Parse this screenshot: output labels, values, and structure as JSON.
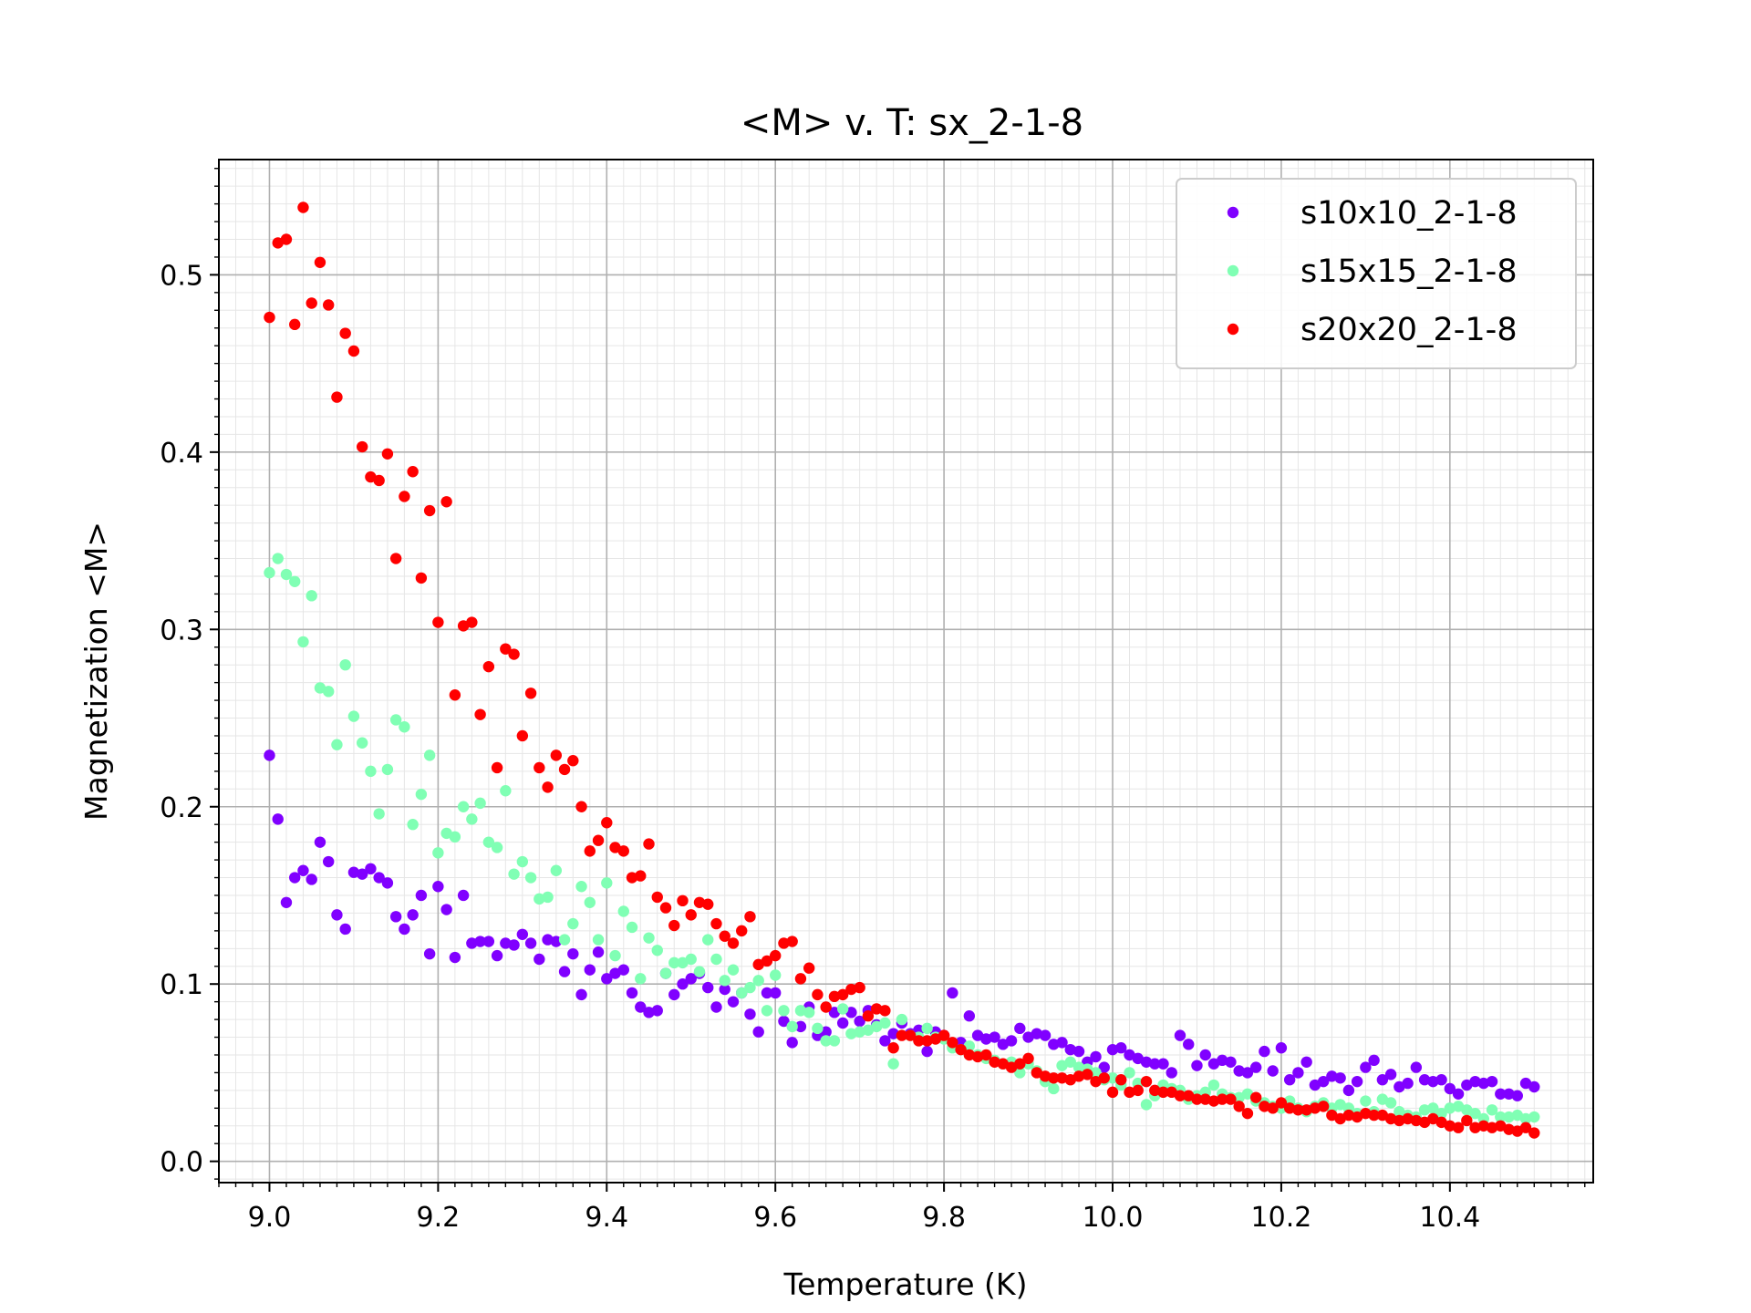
{
  "chart_data": {
    "type": "scatter",
    "title": "<M> v. T: sx_2-1-8",
    "xlabel": "Temperature (K)",
    "ylabel": "Magnetization <M>",
    "xlim": [
      8.94,
      10.57
    ],
    "ylim": [
      -0.012,
      0.565
    ],
    "xticks": [
      "9.0",
      "9.2",
      "9.4",
      "9.6",
      "9.8",
      "10.0",
      "10.2",
      "10.4"
    ],
    "yticks": [
      "0.0",
      "0.1",
      "0.2",
      "0.3",
      "0.4",
      "0.5"
    ],
    "grid": "major and minor",
    "legend_position": "top-right",
    "series": [
      {
        "name": "s10x10_2-1-8",
        "color": "#8000ff",
        "x": [
          9.0,
          9.01,
          9.02,
          9.03,
          9.04,
          9.05,
          9.06,
          9.07,
          9.08,
          9.09,
          9.1,
          9.11,
          9.12,
          9.13,
          9.14,
          9.15,
          9.16,
          9.17,
          9.18,
          9.19,
          9.2,
          9.21,
          9.22,
          9.23,
          9.24,
          9.25,
          9.26,
          9.27,
          9.28,
          9.29,
          9.3,
          9.31,
          9.32,
          9.33,
          9.34,
          9.35,
          9.36,
          9.37,
          9.38,
          9.39,
          9.4,
          9.41,
          9.42,
          9.43,
          9.44,
          9.45,
          9.46,
          9.47,
          9.48,
          9.49,
          9.5,
          9.51,
          9.52,
          9.53,
          9.54,
          9.55,
          9.56,
          9.57,
          9.58,
          9.59,
          9.6,
          9.61,
          9.62,
          9.63,
          9.64,
          9.65,
          9.66,
          9.67,
          9.68,
          9.69,
          9.7,
          9.71,
          9.72,
          9.73,
          9.74,
          9.75,
          9.76,
          9.77,
          9.78,
          9.79,
          9.8,
          9.81,
          9.82,
          9.83,
          9.84,
          9.85,
          9.86,
          9.87,
          9.88,
          9.89,
          9.9,
          9.91,
          9.92,
          9.93,
          9.94,
          9.95,
          9.96,
          9.97,
          9.98,
          9.99,
          10.0,
          10.01,
          10.02,
          10.03,
          10.04,
          10.05,
          10.06,
          10.07,
          10.08,
          10.09,
          10.1,
          10.11,
          10.12,
          10.13,
          10.14,
          10.15,
          10.16,
          10.17,
          10.18,
          10.19,
          10.2,
          10.21,
          10.22,
          10.23,
          10.24,
          10.25,
          10.26,
          10.27,
          10.28,
          10.29,
          10.3,
          10.31,
          10.32,
          10.33,
          10.34,
          10.35,
          10.36,
          10.37,
          10.38,
          10.39,
          10.4,
          10.41,
          10.42,
          10.43,
          10.44,
          10.45,
          10.46,
          10.47,
          10.48,
          10.49,
          10.5
        ],
        "y": [
          0.229,
          0.193,
          0.146,
          0.16,
          0.164,
          0.159,
          0.18,
          0.169,
          0.139,
          0.131,
          0.163,
          0.162,
          0.165,
          0.16,
          0.157,
          0.138,
          0.131,
          0.139,
          0.15,
          0.117,
          0.155,
          0.142,
          0.115,
          0.15,
          0.123,
          0.124,
          0.124,
          0.116,
          0.123,
          0.122,
          0.128,
          0.123,
          0.114,
          0.125,
          0.124,
          0.107,
          0.117,
          0.094,
          0.108,
          0.118,
          0.103,
          0.106,
          0.108,
          0.095,
          0.087,
          0.084,
          0.085,
          0.106,
          0.094,
          0.1,
          0.103,
          0.106,
          0.098,
          0.087,
          0.097,
          0.09,
          0.095,
          0.083,
          0.073,
          0.095,
          0.095,
          0.079,
          0.067,
          0.076,
          0.087,
          0.071,
          0.073,
          0.084,
          0.078,
          0.084,
          0.079,
          0.085,
          0.077,
          0.068,
          0.072,
          0.078,
          0.072,
          0.074,
          0.062,
          0.073,
          0.071,
          0.095,
          0.067,
          0.082,
          0.071,
          0.069,
          0.07,
          0.066,
          0.068,
          0.075,
          0.07,
          0.072,
          0.071,
          0.066,
          0.067,
          0.063,
          0.062,
          0.056,
          0.059,
          0.053,
          0.063,
          0.064,
          0.06,
          0.058,
          0.056,
          0.055,
          0.055,
          0.05,
          0.071,
          0.066,
          0.054,
          0.06,
          0.055,
          0.057,
          0.056,
          0.051,
          0.05,
          0.053,
          0.062,
          0.051,
          0.064,
          0.046,
          0.05,
          0.056,
          0.043,
          0.045,
          0.048,
          0.047,
          0.04,
          0.045,
          0.053,
          0.057,
          0.046,
          0.049,
          0.042,
          0.044,
          0.053,
          0.046,
          0.045,
          0.046,
          0.041,
          0.038,
          0.043,
          0.045,
          0.044,
          0.045,
          0.038,
          0.038,
          0.037,
          0.044,
          0.042
        ]
      },
      {
        "name": "s15x15_2-1-8",
        "color": "#80ffb4",
        "x": [
          9.0,
          9.01,
          9.02,
          9.03,
          9.04,
          9.05,
          9.06,
          9.07,
          9.08,
          9.09,
          9.1,
          9.11,
          9.12,
          9.13,
          9.14,
          9.15,
          9.16,
          9.17,
          9.18,
          9.19,
          9.2,
          9.21,
          9.22,
          9.23,
          9.24,
          9.25,
          9.26,
          9.27,
          9.28,
          9.29,
          9.3,
          9.31,
          9.32,
          9.33,
          9.34,
          9.35,
          9.36,
          9.37,
          9.38,
          9.39,
          9.4,
          9.41,
          9.42,
          9.43,
          9.44,
          9.45,
          9.46,
          9.47,
          9.48,
          9.49,
          9.5,
          9.51,
          9.52,
          9.53,
          9.54,
          9.55,
          9.56,
          9.57,
          9.58,
          9.59,
          9.6,
          9.61,
          9.62,
          9.63,
          9.64,
          9.65,
          9.66,
          9.67,
          9.68,
          9.69,
          9.7,
          9.71,
          9.72,
          9.73,
          9.74,
          9.75,
          9.76,
          9.77,
          9.78,
          9.79,
          9.8,
          9.81,
          9.82,
          9.83,
          9.84,
          9.85,
          9.86,
          9.87,
          9.88,
          9.89,
          9.9,
          9.91,
          9.92,
          9.93,
          9.94,
          9.95,
          9.96,
          9.97,
          9.98,
          9.99,
          10.0,
          10.01,
          10.02,
          10.03,
          10.04,
          10.05,
          10.06,
          10.07,
          10.08,
          10.09,
          10.1,
          10.11,
          10.12,
          10.13,
          10.14,
          10.15,
          10.16,
          10.17,
          10.18,
          10.19,
          10.2,
          10.21,
          10.22,
          10.23,
          10.24,
          10.25,
          10.26,
          10.27,
          10.28,
          10.29,
          10.3,
          10.31,
          10.32,
          10.33,
          10.34,
          10.35,
          10.36,
          10.37,
          10.38,
          10.39,
          10.4,
          10.41,
          10.42,
          10.43,
          10.44,
          10.45,
          10.46,
          10.47,
          10.48,
          10.49,
          10.5
        ],
        "y": [
          0.332,
          0.34,
          0.331,
          0.327,
          0.293,
          0.319,
          0.267,
          0.265,
          0.235,
          0.28,
          0.251,
          0.236,
          0.22,
          0.196,
          0.221,
          0.249,
          0.245,
          0.19,
          0.207,
          0.229,
          0.174,
          0.185,
          0.183,
          0.2,
          0.193,
          0.202,
          0.18,
          0.177,
          0.209,
          0.162,
          0.169,
          0.16,
          0.148,
          0.149,
          0.164,
          0.125,
          0.134,
          0.155,
          0.146,
          0.125,
          0.157,
          0.116,
          0.141,
          0.132,
          0.103,
          0.126,
          0.119,
          0.106,
          0.112,
          0.112,
          0.114,
          0.107,
          0.125,
          0.114,
          0.102,
          0.108,
          0.095,
          0.098,
          0.102,
          0.085,
          0.105,
          0.085,
          0.076,
          0.085,
          0.084,
          0.075,
          0.068,
          0.068,
          0.086,
          0.072,
          0.073,
          0.074,
          0.076,
          0.078,
          0.055,
          0.08,
          0.071,
          0.07,
          0.075,
          0.07,
          0.069,
          0.064,
          0.063,
          0.065,
          0.06,
          0.058,
          0.057,
          0.055,
          0.056,
          0.05,
          0.055,
          0.051,
          0.045,
          0.041,
          0.054,
          0.056,
          0.053,
          0.052,
          0.05,
          0.046,
          0.047,
          0.043,
          0.05,
          0.044,
          0.032,
          0.037,
          0.043,
          0.041,
          0.04,
          0.035,
          0.037,
          0.039,
          0.043,
          0.038,
          0.036,
          0.036,
          0.038,
          0.034,
          0.033,
          0.031,
          0.03,
          0.034,
          0.03,
          0.028,
          0.031,
          0.033,
          0.03,
          0.032,
          0.03,
          0.027,
          0.034,
          0.028,
          0.035,
          0.033,
          0.028,
          0.026,
          0.025,
          0.029,
          0.03,
          0.027,
          0.03,
          0.031,
          0.029,
          0.027,
          0.024,
          0.029,
          0.025,
          0.025,
          0.026,
          0.024,
          0.025
        ]
      },
      {
        "name": "s20x20_2-1-8",
        "color": "#ff0000",
        "x": [
          9.0,
          9.01,
          9.02,
          9.03,
          9.04,
          9.05,
          9.06,
          9.07,
          9.08,
          9.09,
          9.1,
          9.11,
          9.12,
          9.13,
          9.14,
          9.15,
          9.16,
          9.17,
          9.18,
          9.19,
          9.2,
          9.21,
          9.22,
          9.23,
          9.24,
          9.25,
          9.26,
          9.27,
          9.28,
          9.29,
          9.3,
          9.31,
          9.32,
          9.33,
          9.34,
          9.35,
          9.36,
          9.37,
          9.38,
          9.39,
          9.4,
          9.41,
          9.42,
          9.43,
          9.44,
          9.45,
          9.46,
          9.47,
          9.48,
          9.49,
          9.5,
          9.51,
          9.52,
          9.53,
          9.54,
          9.55,
          9.56,
          9.57,
          9.58,
          9.59,
          9.6,
          9.61,
          9.62,
          9.63,
          9.64,
          9.65,
          9.66,
          9.67,
          9.68,
          9.69,
          9.7,
          9.71,
          9.72,
          9.73,
          9.74,
          9.75,
          9.76,
          9.77,
          9.78,
          9.79,
          9.8,
          9.81,
          9.82,
          9.83,
          9.84,
          9.85,
          9.86,
          9.87,
          9.88,
          9.89,
          9.9,
          9.91,
          9.92,
          9.93,
          9.94,
          9.95,
          9.96,
          9.97,
          9.98,
          9.99,
          10.0,
          10.01,
          10.02,
          10.03,
          10.04,
          10.05,
          10.06,
          10.07,
          10.08,
          10.09,
          10.1,
          10.11,
          10.12,
          10.13,
          10.14,
          10.15,
          10.16,
          10.17,
          10.18,
          10.19,
          10.2,
          10.21,
          10.22,
          10.23,
          10.24,
          10.25,
          10.26,
          10.27,
          10.28,
          10.29,
          10.3,
          10.31,
          10.32,
          10.33,
          10.34,
          10.35,
          10.36,
          10.37,
          10.38,
          10.39,
          10.4,
          10.41,
          10.42,
          10.43,
          10.44,
          10.45,
          10.46,
          10.47,
          10.48,
          10.49,
          10.5
        ],
        "y": [
          0.476,
          0.518,
          0.52,
          0.472,
          0.538,
          0.484,
          0.507,
          0.483,
          0.431,
          0.467,
          0.457,
          0.403,
          0.386,
          0.384,
          0.399,
          0.34,
          0.375,
          0.389,
          0.329,
          0.367,
          0.304,
          0.372,
          0.263,
          0.302,
          0.304,
          0.252,
          0.279,
          0.222,
          0.289,
          0.286,
          0.24,
          0.264,
          0.222,
          0.211,
          0.229,
          0.221,
          0.226,
          0.2,
          0.175,
          0.181,
          0.191,
          0.177,
          0.175,
          0.16,
          0.161,
          0.179,
          0.149,
          0.143,
          0.133,
          0.147,
          0.139,
          0.146,
          0.145,
          0.134,
          0.127,
          0.123,
          0.13,
          0.138,
          0.111,
          0.113,
          0.116,
          0.123,
          0.124,
          0.103,
          0.109,
          0.094,
          0.087,
          0.093,
          0.094,
          0.097,
          0.098,
          0.082,
          0.086,
          0.085,
          0.064,
          0.071,
          0.071,
          0.068,
          0.068,
          0.069,
          0.071,
          0.067,
          0.063,
          0.06,
          0.059,
          0.06,
          0.056,
          0.055,
          0.053,
          0.055,
          0.058,
          0.05,
          0.048,
          0.047,
          0.047,
          0.046,
          0.048,
          0.049,
          0.045,
          0.047,
          0.039,
          0.046,
          0.039,
          0.04,
          0.045,
          0.04,
          0.039,
          0.039,
          0.037,
          0.037,
          0.035,
          0.035,
          0.034,
          0.035,
          0.035,
          0.031,
          0.027,
          0.036,
          0.031,
          0.03,
          0.033,
          0.03,
          0.029,
          0.029,
          0.03,
          0.031,
          0.026,
          0.024,
          0.026,
          0.025,
          0.027,
          0.026,
          0.026,
          0.024,
          0.023,
          0.024,
          0.023,
          0.022,
          0.024,
          0.022,
          0.02,
          0.019,
          0.023,
          0.019,
          0.02,
          0.019,
          0.02,
          0.018,
          0.017,
          0.019,
          0.016
        ]
      }
    ]
  }
}
